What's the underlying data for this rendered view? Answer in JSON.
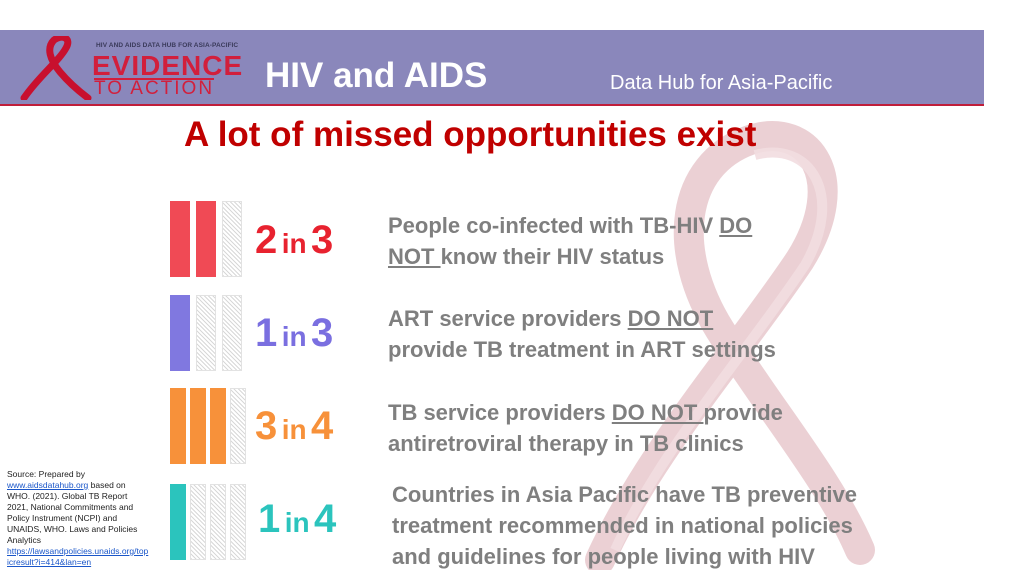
{
  "header": {
    "logo_small": "HIV AND AIDS DATA HUB FOR ASIA-PACIFIC",
    "logo_main": "EVIDENCE",
    "logo_sub": "TO ACTION",
    "title": "HIV and AIDS",
    "subtitle": "Data Hub for Asia-Pacific"
  },
  "headline": "A lot of missed opportunities exist",
  "rows": [
    {
      "num": "2",
      "in": "in",
      "den": "3",
      "color": "#f04a55",
      "line1_pre": "People co-infected with TB-HIV ",
      "line1_u": "DO",
      "line2_u": "NOT ",
      "line2_post": "know their HIV status"
    },
    {
      "num": "1",
      "in": "in",
      "den": "3",
      "color": "#8078e0",
      "line1_pre": "ART service providers ",
      "line1_u": "DO NOT",
      "line2_post": "provide TB treatment in ART settings"
    },
    {
      "num": "3",
      "in": "in",
      "den": "4",
      "color": "#f7913a",
      "line1_pre": "TB service providers ",
      "line1_u": "DO NOT ",
      "line1_post": "provide",
      "line2_post": "antiretroviral therapy in TB clinics"
    },
    {
      "num": "1",
      "in": "in",
      "den": "4",
      "color": "#2bc4bd",
      "line1": "Countries in Asia Pacific have TB preventive",
      "line2": "treatment recommended in national policies",
      "line3": "and guidelines for people living with HIV"
    }
  ],
  "source": {
    "prefix": "Source: Prepared by",
    "link1": "www.aidsdatahub.org",
    "text": " based on WHO. (2021). Global TB Report 2021, National Commitments and Policy Instrument (NCPI) and UNAIDS, WHO. Laws and Policies Analytics",
    "link2": "https://lawsandpolicies.unaids.org/topicresult?i=414&lan=en"
  }
}
